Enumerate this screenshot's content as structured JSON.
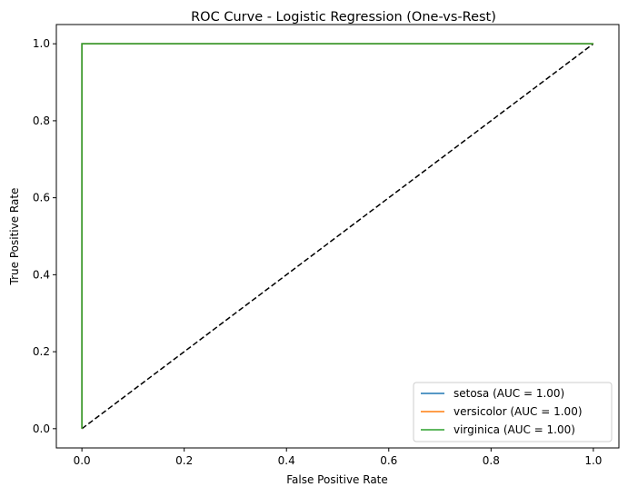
{
  "chart_data": {
    "type": "line",
    "title": "ROC Curve - Logistic Regression (One-vs-Rest)",
    "xlabel": "False Positive Rate",
    "ylabel": "True Positive Rate",
    "xlim": [
      -0.05,
      1.05
    ],
    "ylim": [
      -0.05,
      1.05
    ],
    "xticks": [
      "0.0",
      "0.2",
      "0.4",
      "0.6",
      "0.8",
      "1.0"
    ],
    "yticks": [
      "0.0",
      "0.2",
      "0.4",
      "0.6",
      "0.8",
      "1.0"
    ],
    "grid": false,
    "legend_position": "bottom-right",
    "series": [
      {
        "name": "setosa (AUC = 1.00)",
        "color": "#1f77b4",
        "x": [
          0,
          0,
          1
        ],
        "y": [
          0,
          1,
          1
        ]
      },
      {
        "name": "versicolor (AUC = 1.00)",
        "color": "#ff7f0e",
        "x": [
          0,
          0,
          1
        ],
        "y": [
          0,
          1,
          1
        ]
      },
      {
        "name": "virginica (AUC = 1.00)",
        "color": "#2ca02c",
        "x": [
          0,
          0,
          1
        ],
        "y": [
          0,
          1,
          1
        ]
      }
    ],
    "reference_line": {
      "x": [
        0,
        1
      ],
      "y": [
        0,
        1
      ],
      "color": "#000000",
      "style": "dashed"
    }
  }
}
